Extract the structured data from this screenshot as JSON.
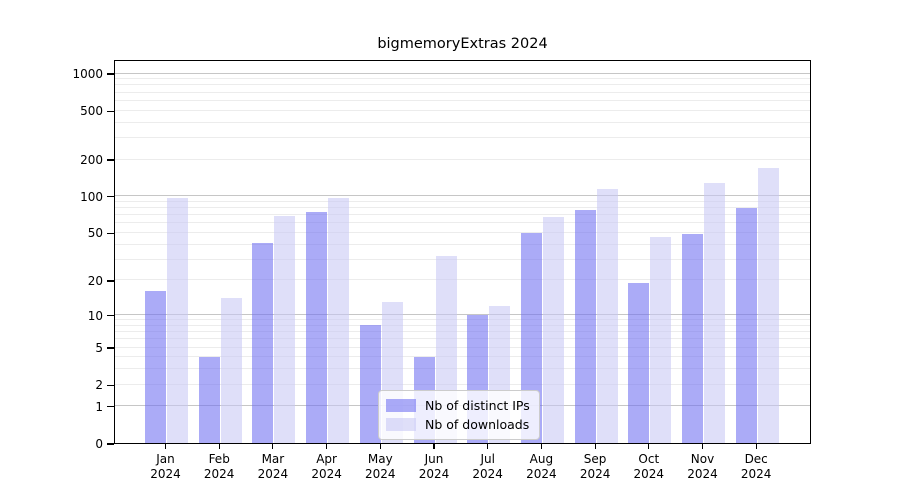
{
  "chart_data": {
    "type": "bar",
    "title": "bigmemoryExtras 2024",
    "categories": [
      "Jan",
      "Feb",
      "Mar",
      "Apr",
      "May",
      "Jun",
      "Jul",
      "Aug",
      "Sep",
      "Oct",
      "Nov",
      "Dec"
    ],
    "category_line2": "2024",
    "series": [
      {
        "name": "Nb of distinct IPs",
        "color": "rgba(110,110,242,0.58)",
        "values": [
          16,
          4,
          41,
          74,
          8,
          4,
          10,
          50,
          77,
          19,
          49,
          80
        ]
      },
      {
        "name": "Nb of downloads",
        "color": "rgba(198,198,245,0.57)",
        "values": [
          97,
          14,
          68,
          96,
          13,
          32,
          12,
          67,
          113,
          46,
          128,
          168
        ]
      }
    ],
    "xlabel": "",
    "ylabel": "",
    "y_axis": {
      "scale": "log10(1+v)",
      "max": 1300,
      "tick_labels": [
        "1000",
        "500",
        "200",
        "100",
        "50",
        "20",
        "10",
        "5",
        "2",
        "1",
        "0"
      ],
      "tick_values": [
        1000,
        500,
        200,
        100,
        50,
        20,
        10,
        5,
        2,
        1,
        0
      ],
      "major_gridlines": [
        1,
        10,
        100,
        1000
      ],
      "minor_gridlines": [
        2,
        3,
        4,
        5,
        6,
        7,
        8,
        9,
        20,
        30,
        40,
        50,
        60,
        70,
        80,
        90,
        200,
        300,
        400,
        500,
        600,
        700,
        800,
        900
      ]
    },
    "legend": {
      "position": "bottom-center"
    },
    "grid": "on"
  },
  "colors": {
    "major_grid": "#c6c6c6",
    "minor_grid": "#ececec",
    "frame": "#000000",
    "text": "#000000",
    "legend_border": "#cccccc"
  }
}
